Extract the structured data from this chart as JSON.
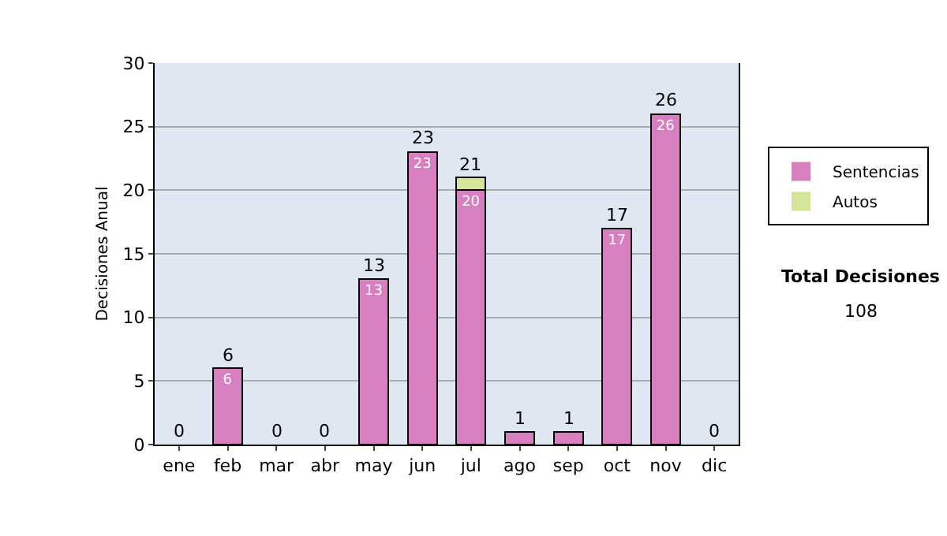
{
  "chart_data": {
    "type": "bar",
    "ylabel": "Decisiones Anual",
    "categories": [
      "ene",
      "feb",
      "mar",
      "abr",
      "may",
      "jun",
      "jul",
      "ago",
      "sep",
      "oct",
      "nov",
      "dic"
    ],
    "series": [
      {
        "name": "Sentencias",
        "color": "#d77fc0",
        "values": [
          0,
          6,
          0,
          0,
          13,
          23,
          20,
          1,
          1,
          17,
          26,
          0
        ],
        "value_labels": [
          null,
          "6",
          null,
          null,
          "13",
          "23",
          "20",
          null,
          null,
          "17",
          "26",
          null
        ]
      },
      {
        "name": "Autos",
        "color": "#d4e59a",
        "values": [
          0,
          0,
          0,
          0,
          0,
          0,
          1,
          0,
          0,
          0,
          0,
          0
        ]
      }
    ],
    "stacked": true,
    "totals": [
      "0",
      "6",
      "0",
      "0",
      "13",
      "23",
      "21",
      "1",
      "1",
      "17",
      "26",
      "0"
    ],
    "ylim": [
      0,
      30
    ],
    "yticks": [
      0,
      5,
      10,
      15,
      20,
      25,
      30
    ],
    "grid": "y",
    "legend": "right",
    "annotations": [
      "Total Decisiones",
      "108"
    ]
  }
}
